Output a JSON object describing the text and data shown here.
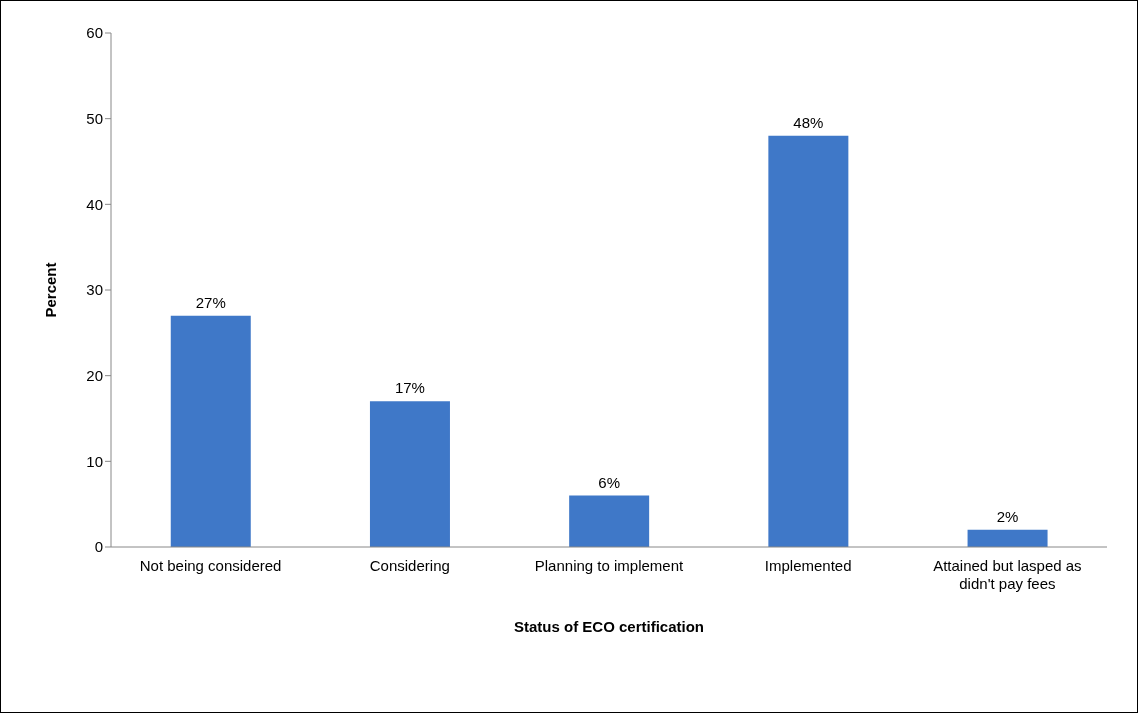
{
  "chart_data": {
    "type": "bar",
    "xlabel": "Status of ECO certification",
    "ylabel": "Percent",
    "categories": [
      "Not being considered",
      "Considering",
      "Planning to implement",
      "Implemented",
      "Attained but lasped as didn't pay fees"
    ],
    "values": [
      27,
      17,
      6,
      48,
      2
    ],
    "value_labels": [
      "27%",
      "17%",
      "6%",
      "48%",
      "2%"
    ],
    "color": "#3f78c8",
    "ylim": [
      0,
      60
    ],
    "yticks": [
      0,
      10,
      20,
      30,
      40,
      50,
      60
    ],
    "grid": false
  }
}
